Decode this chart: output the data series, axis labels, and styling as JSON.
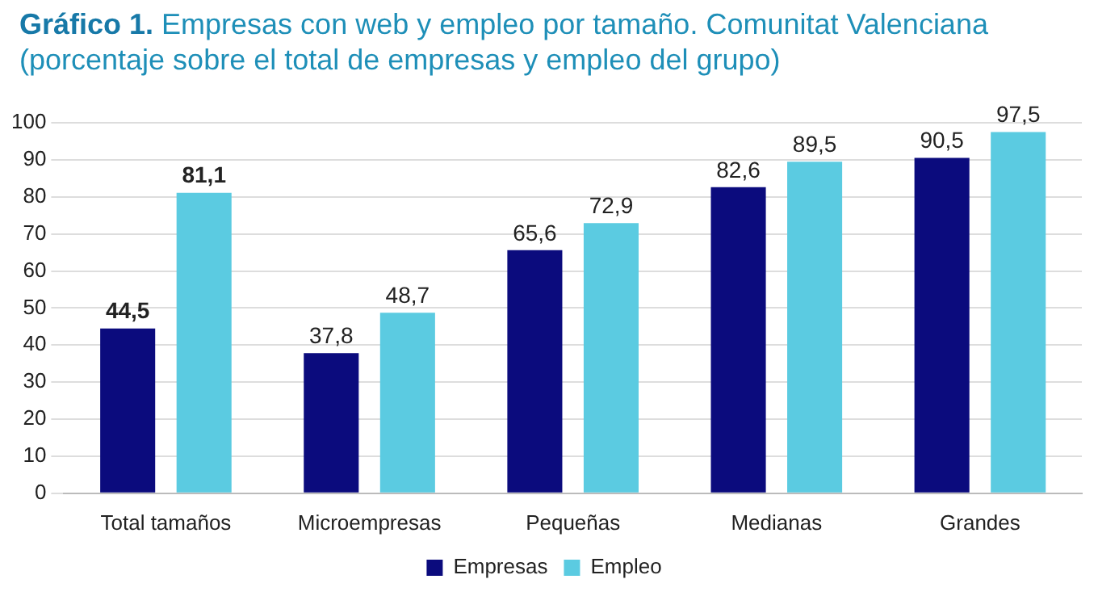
{
  "chart_data": {
    "type": "bar",
    "title": "Gráfico 1. Empresas con web y empleo por tamaño. Comunitat Valenciana (porcentaje sobre el total de empresas y empleo del grupo)",
    "categories": [
      "Total tamaños",
      "Microempresas",
      "Pequeñas",
      "Medianas",
      "Grandes"
    ],
    "series": [
      {
        "name": "Empresas",
        "color": "#0b0b7d",
        "values": [
          44.5,
          37.8,
          65.6,
          82.6,
          90.5
        ],
        "value_labels": [
          "44,5",
          "37,8",
          "65,6",
          "82,6",
          "90,5"
        ]
      },
      {
        "name": "Empleo",
        "color": "#5bcbe1",
        "values": [
          81.1,
          48.7,
          72.9,
          89.5,
          97.5
        ],
        "value_labels": [
          "81,1",
          "48,7",
          "72,9",
          "89,5",
          "97,5"
        ]
      }
    ],
    "ylim": [
      0,
      100
    ],
    "yticks": [
      0,
      10,
      20,
      30,
      40,
      50,
      60,
      70,
      80,
      90,
      100
    ],
    "grid": "y",
    "legend": "bottom"
  }
}
